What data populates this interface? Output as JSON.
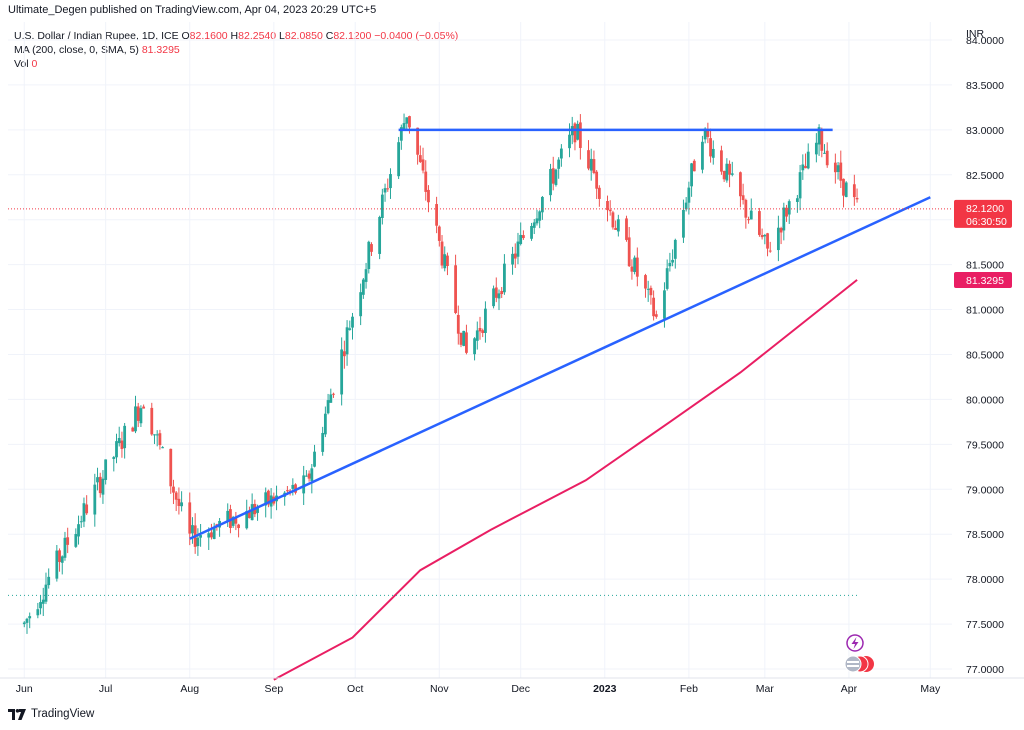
{
  "header": {
    "published": "Ultimate_Degen published on TradingView.com, Apr 04, 2023 20:29 UTC+5",
    "symbol": "U.S. Dollar / Indian Rupee, 1D, ICE",
    "ohlc": [
      {
        "k": "O",
        "v": "82.1600"
      },
      {
        "k": "H",
        "v": "82.2540"
      },
      {
        "k": "L",
        "v": "82.0850"
      },
      {
        "k": "C",
        "v": "82.1200"
      }
    ],
    "change": "−0.0400 (−0.05%)",
    "ma_label": "MA (200, close, 0, SMA, 5)",
    "ma_value": "81.3295",
    "vol_label": "Vol",
    "vol_value": "0"
  },
  "footer": {
    "brand": "TradingView",
    "logo_icon": "tradingview-logo-icon"
  },
  "colors": {
    "up": "#26a69a",
    "down": "#ef5350",
    "trendline": "#2962ff",
    "ma": "#e91e63",
    "price_badge": "#f23645"
  },
  "chart_data": {
    "type": "candlestick",
    "currency_label": "INR",
    "y_ticks": [
      "84.0000",
      "83.5000",
      "83.0000",
      "82.5000",
      "82.0000",
      "81.5000",
      "81.0000",
      "80.5000",
      "80.0000",
      "79.5000",
      "79.0000",
      "78.5000",
      "78.0000",
      "77.5000",
      "77.0000"
    ],
    "ylim": [
      76.9,
      84.2
    ],
    "x_ticks": [
      "Jun",
      "Jul",
      "Aug",
      "Sep",
      "Oct",
      "Nov",
      "Dec",
      "2023",
      "Feb",
      "Mar",
      "Apr",
      "May"
    ],
    "last_price": "82.1200",
    "countdown": "06:30:50",
    "ma_last": "81.3295",
    "key_points": [
      {
        "date": "2022-06-01",
        "value": 77.5
      },
      {
        "date": "2022-07-15",
        "value": 80.0
      },
      {
        "date": "2022-08-01",
        "value": 78.45
      },
      {
        "date": "2022-09-13",
        "value": 79.05
      },
      {
        "date": "2022-10-20",
        "value": 83.2
      },
      {
        "date": "2022-11-11",
        "value": 80.5
      },
      {
        "date": "2022-12-21",
        "value": 83.0
      },
      {
        "date": "2023-01-20",
        "value": 80.9
      },
      {
        "date": "2023-02-06",
        "value": 83.0
      },
      {
        "date": "2023-03-02",
        "value": 81.65
      },
      {
        "date": "2023-03-21",
        "value": 82.9
      },
      {
        "date": "2023-04-04",
        "value": 82.12
      }
    ],
    "resistance": {
      "start": {
        "date": "2022-10-17",
        "value": 83.0
      },
      "end": {
        "date": "2023-03-26",
        "value": 83.0
      }
    },
    "support": {
      "start": {
        "date": "2022-08-01",
        "value": 78.45
      },
      "end": {
        "date": "2023-05-01",
        "value": 82.25
      }
    },
    "ma200": [
      {
        "date": "2022-09-01",
        "value": 76.88
      },
      {
        "date": "2022-09-30",
        "value": 77.35
      },
      {
        "date": "2022-10-25",
        "value": 78.1
      },
      {
        "date": "2022-11-20",
        "value": 78.55
      },
      {
        "date": "2022-12-25",
        "value": 79.1
      },
      {
        "date": "2023-01-25",
        "value": 79.75
      },
      {
        "date": "2023-02-20",
        "value": 80.3
      },
      {
        "date": "2023-03-15",
        "value": 80.85
      },
      {
        "date": "2023-04-04",
        "value": 81.33
      }
    ]
  }
}
